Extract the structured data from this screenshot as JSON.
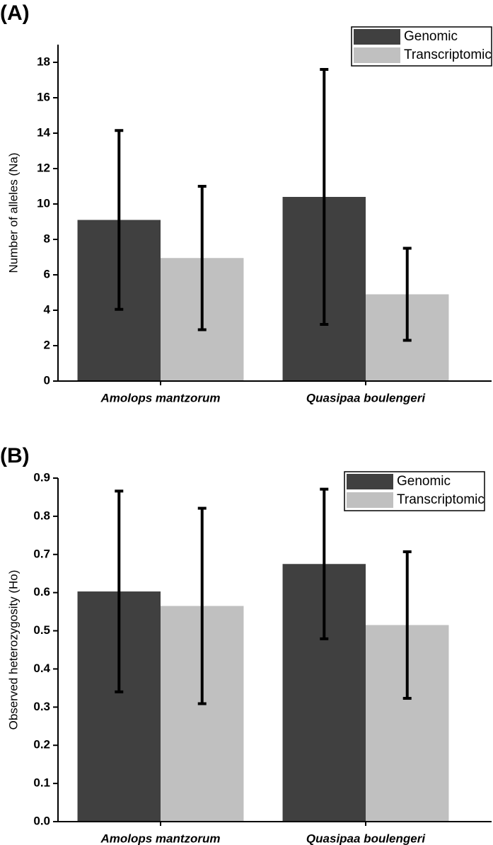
{
  "chart_data": [
    {
      "type": "bar",
      "panel_label": "(A)",
      "y_label": "Number of alleles (Na)",
      "categories": [
        "Amolops mantzorum",
        "Quasipaa boulengeri"
      ],
      "series": [
        {
          "name": "Genomic",
          "color": "#404040",
          "values": [
            9.1,
            10.4
          ],
          "errors": [
            5.05,
            7.2
          ]
        },
        {
          "name": "Transcriptomic",
          "color": "#c0c0c0",
          "values": [
            6.95,
            4.9
          ],
          "errors": [
            4.05,
            2.6
          ]
        }
      ],
      "ylim": [
        0,
        19
      ],
      "yticks": [
        0,
        2,
        4,
        6,
        8,
        10,
        12,
        14,
        16,
        18
      ]
    },
    {
      "type": "bar",
      "panel_label": "(B)",
      "y_label": "Observed heterozygosity (Ho)",
      "categories": [
        "Amolops mantzorum",
        "Quasipaa boulengeri"
      ],
      "series": [
        {
          "name": "Genomic",
          "color": "#404040",
          "values": [
            0.603,
            0.675
          ],
          "errors": [
            0.263,
            0.196
          ]
        },
        {
          "name": "Transcriptomic",
          "color": "#c0c0c0",
          "values": [
            0.565,
            0.515
          ],
          "errors": [
            0.256,
            0.192
          ]
        }
      ],
      "ylim": [
        0,
        0.9
      ],
      "yticks": [
        {
          "value": 0,
          "label": "0.0"
        },
        0.1,
        0.2,
        0.3,
        0.4,
        0.5,
        0.6,
        0.7,
        0.8,
        0.9
      ]
    }
  ]
}
